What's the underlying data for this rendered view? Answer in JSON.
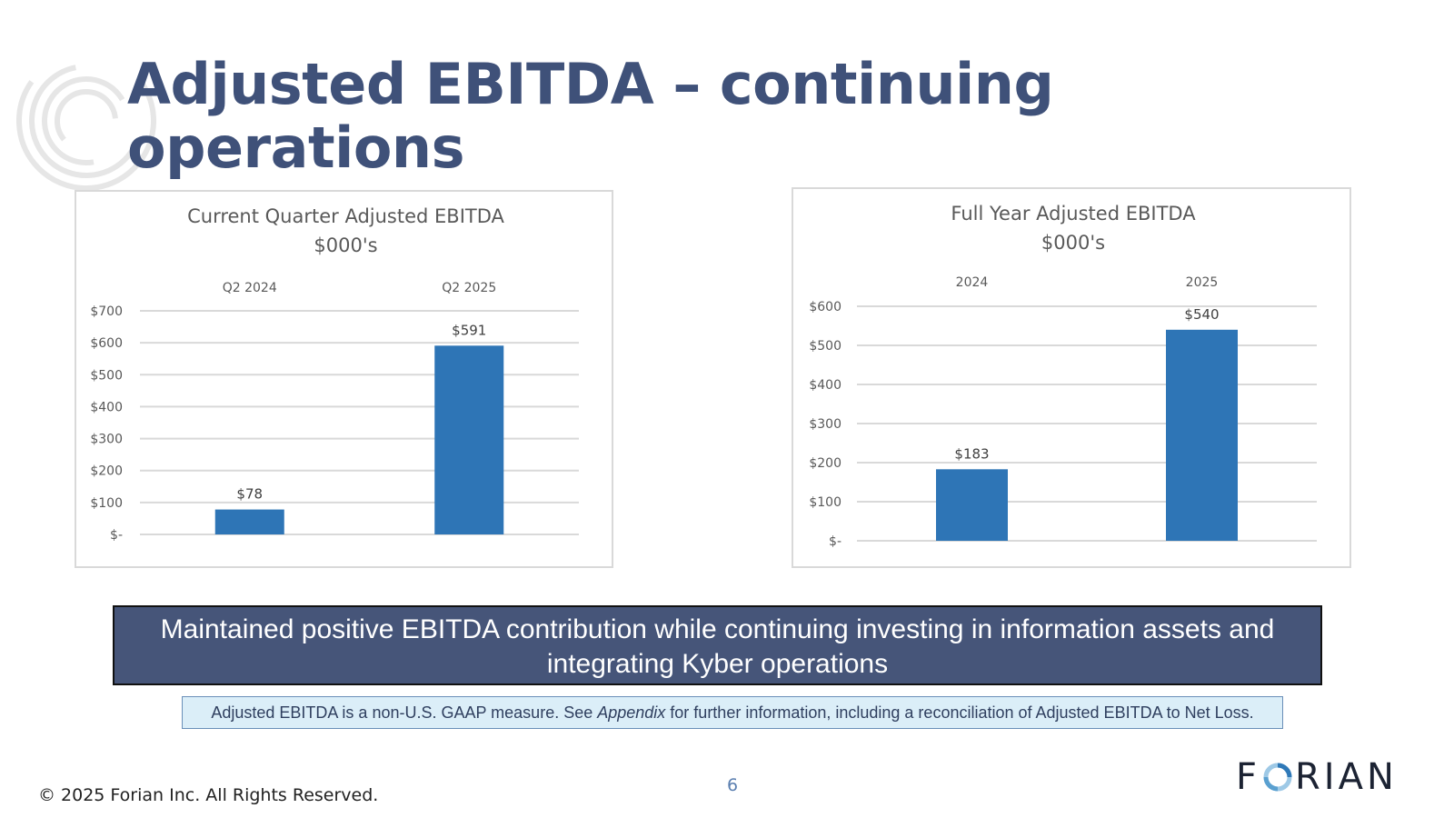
{
  "slide": {
    "title": "Adjusted EBITDA – continuing operations",
    "title_line1": "Adjusted EBITDA – continuing",
    "title_line2": "operations",
    "callout": "Maintained positive EBITDA contribution while continuing investing in information assets and integrating Kyber operations",
    "note": {
      "before": "Adjusted EBITDA is a non-U.S. GAAP measure. See ",
      "emphasis": "Appendix",
      "after": " for further information, including a reconciliation of Adjusted EBITDA to Net Loss."
    },
    "copyright": "© 2025 Forian Inc.  All Rights Reserved.",
    "page_number": "6",
    "logo": {
      "before": "F",
      "after": "RIAN"
    }
  },
  "colors": {
    "title": "#3f5179",
    "bar": "#2e75b6",
    "callout_bg": "#465579",
    "note_bg": "#dbeef8",
    "gridline": "#d9d9d9"
  },
  "chart_data": [
    {
      "type": "bar",
      "title": "Current Quarter Adjusted EBITDA",
      "subtitle": "$000's",
      "categories": [
        "Q2 2024",
        "Q2 2025"
      ],
      "values": [
        78,
        591
      ],
      "data_labels": [
        "$78",
        "$591"
      ],
      "ylim": [
        0,
        700
      ],
      "yticks": [
        0,
        100,
        200,
        300,
        400,
        500,
        600,
        700
      ],
      "ytick_labels": [
        "$-",
        "$100",
        "$200",
        "$300",
        "$400",
        "$500",
        "$600",
        "$700"
      ],
      "category_axis_position": "top",
      "grid": true
    },
    {
      "type": "bar",
      "title": "Full Year Adjusted EBITDA",
      "subtitle": "$000's",
      "categories": [
        "2024",
        "2025"
      ],
      "values": [
        183,
        540
      ],
      "data_labels": [
        "$183",
        "$540"
      ],
      "ylim": [
        0,
        600
      ],
      "yticks": [
        0,
        100,
        200,
        300,
        400,
        500,
        600
      ],
      "ytick_labels": [
        "$-",
        "$100",
        "$200",
        "$300",
        "$400",
        "$500",
        "$600"
      ],
      "category_axis_position": "top",
      "grid": true
    }
  ]
}
